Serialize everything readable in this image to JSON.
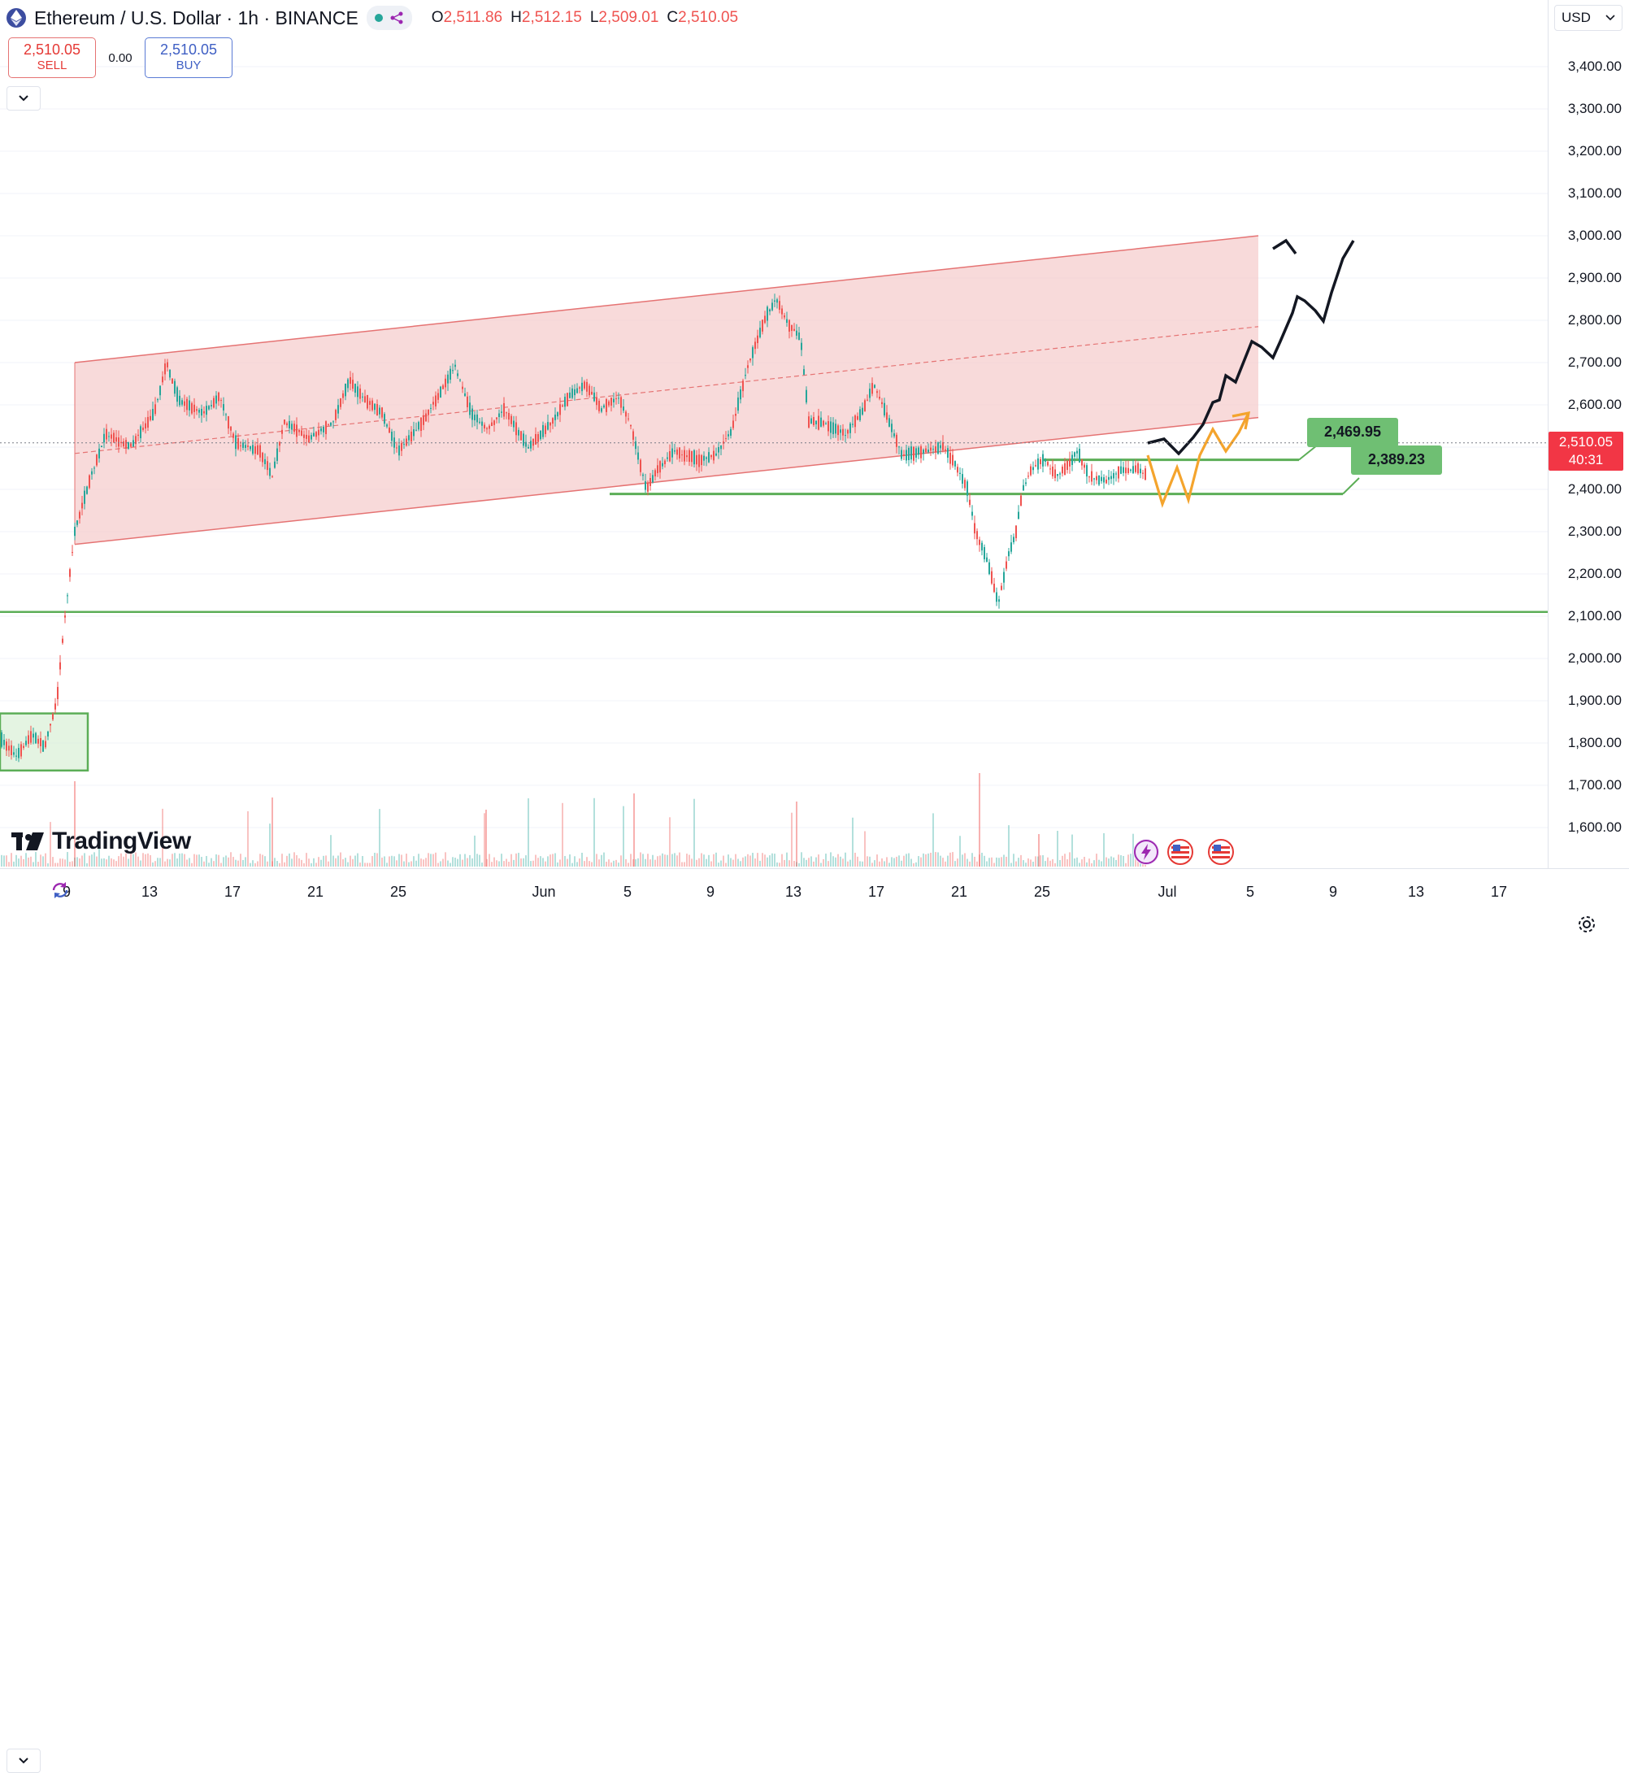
{
  "header": {
    "title": "Ethereum / U.S. Dollar · 1h · BINANCE",
    "ohlc": [
      {
        "k": "O",
        "v": "2,511.86"
      },
      {
        "k": "H",
        "v": "2,512.15"
      },
      {
        "k": "L",
        "v": "2,509.01"
      },
      {
        "k": "C",
        "v": "2,510.05"
      }
    ]
  },
  "trade": {
    "sell_price": "2,510.05",
    "sell_label": "SELL",
    "spread": "0.00",
    "buy_price": "2,510.05",
    "buy_label": "BUY"
  },
  "currency": "USD",
  "price_axis": {
    "min": 1550,
    "max": 3500,
    "ticks": [
      "3,400.00",
      "3,300.00",
      "3,200.00",
      "3,100.00",
      "3,000.00",
      "2,900.00",
      "2,800.00",
      "2,700.00",
      "2,600.00",
      "2,500.00",
      "2,400.00",
      "2,300.00",
      "2,200.00",
      "2,100.00",
      "2,000.00",
      "1,900.00",
      "1,800.00",
      "1,700.00",
      "1,600.00"
    ],
    "tick_values": [
      3400,
      3300,
      3200,
      3100,
      3000,
      2900,
      2800,
      2700,
      2600,
      2500,
      2400,
      2300,
      2200,
      2100,
      2000,
      1900,
      1800,
      1700,
      1600
    ]
  },
  "current_price": {
    "value": 2510.05,
    "label": "2,510.05",
    "countdown": "40:31"
  },
  "time_axis": {
    "ticks": [
      "9",
      "13",
      "17",
      "21",
      "25",
      "Jun",
      "5",
      "9",
      "13",
      "17",
      "21",
      "25",
      "Jul",
      "5",
      "9",
      "13",
      "17"
    ]
  },
  "annotations": {
    "level_1": {
      "value": 2469.95,
      "label": "2,469.95"
    },
    "level_2": {
      "value": 2389.23,
      "label": "2,389.23"
    },
    "support": {
      "value": 2110
    }
  },
  "branding": {
    "logo_text": "TradingView"
  },
  "colors": {
    "channel_fill": "#f5c6c6",
    "channel_line": "#e57373",
    "level_line": "#5cae57",
    "up": "#26a69a",
    "down": "#ef5350",
    "price_label": "#f23645"
  }
}
